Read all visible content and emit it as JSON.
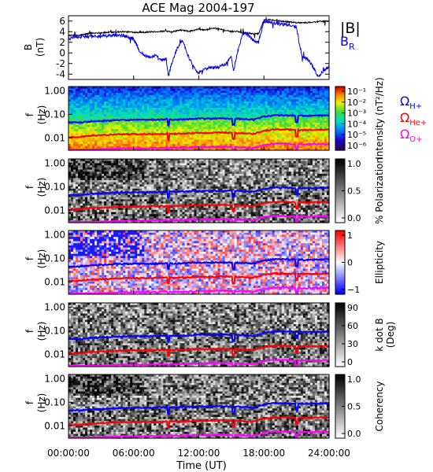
{
  "title": "ACE Mag 2004-197",
  "xlabel": "Time (UT)",
  "x_ticks": [
    "00:00:00",
    "06:00:00",
    "12:00:00",
    "18:00:00",
    "24:00:00"
  ],
  "freq_ticks": [
    "1.00",
    "0.10",
    "0.01"
  ],
  "panels": [
    {
      "id": "intensity",
      "ylabel": [
        "f",
        "(Hz)"
      ],
      "cbar_label": "Intensity (nT²/Hz)",
      "cbar_ticks": [
        "10⁻¹",
        "10⁻²",
        "10⁻³",
        "10⁻⁴",
        "10⁻⁵",
        "10⁻⁶"
      ],
      "colormap": "rainbow"
    },
    {
      "id": "polarization",
      "ylabel": [
        "f",
        "(Hz)"
      ],
      "cbar_label": "% Polarization",
      "cbar_ticks": [
        "1.0",
        "0.5",
        "0.0"
      ],
      "colormap": "gray"
    },
    {
      "id": "ellipticity",
      "ylabel": [
        "f",
        "(Hz)"
      ],
      "cbar_label": "Ellipticity",
      "cbar_ticks": [
        "1",
        "0",
        "−1"
      ],
      "colormap": "bwr"
    },
    {
      "id": "kdotb",
      "ylabel": [
        "f",
        "(Hz)"
      ],
      "cbar_label": [
        "k dot B",
        "(Deg)"
      ],
      "cbar_ticks": [
        "90",
        "60",
        "30",
        "0"
      ],
      "colormap": "gray"
    },
    {
      "id": "coherency",
      "ylabel": [
        "f",
        "(Hz)"
      ],
      "cbar_label": "Coherency",
      "cbar_ticks": [
        "1.0",
        "0.5",
        "0.0"
      ],
      "colormap": "gray"
    }
  ],
  "chart_data": {
    "type": "line",
    "title": "ACE Mag 2004-197",
    "xlabel": "Time (UT)",
    "x_range_hours": [
      0,
      24
    ],
    "panels": [
      {
        "name": "B",
        "ylabel": "B (nT)",
        "ylim": [
          -5,
          7
        ],
        "y_ticks": [
          6,
          4,
          2,
          0,
          -2,
          -4
        ],
        "series": [
          {
            "name": "|B|",
            "color": "#000000",
            "x": [
              0,
              1,
              2,
              3,
              4,
              5,
              6,
              7,
              8,
              9,
              9.5,
              10,
              10.5,
              11,
              11.5,
              12,
              12.5,
              13,
              13.5,
              14,
              14.5,
              15,
              15.5,
              16,
              16.5,
              17,
              17.5,
              18,
              18.5,
              19,
              20,
              21,
              22,
              23,
              24
            ],
            "y": [
              3.3,
              3.3,
              3.7,
              3.8,
              3.9,
              4.0,
              3.9,
              3.9,
              4.0,
              4.1,
              3.9,
              4.2,
              4.3,
              4.1,
              4.2,
              4.5,
              4.3,
              4.5,
              4.6,
              4.5,
              4.2,
              4.0,
              4.1,
              3.8,
              3.8,
              3.6,
              3.6,
              6.2,
              6.3,
              6.1,
              5.9,
              5.7,
              5.7,
              5.9,
              6.0
            ]
          },
          {
            "name": "B_R",
            "color": "#0000ee",
            "x": [
              0,
              0.5,
              1,
              2,
              3,
              4,
              5,
              5.5,
              6,
              6.5,
              7,
              7.5,
              8,
              8.5,
              9,
              9.2,
              9.5,
              10,
              10.5,
              11,
              11.5,
              12,
              12.5,
              13,
              13.5,
              14,
              14.5,
              15,
              15.2,
              15.5,
              16,
              16.5,
              17,
              17.5,
              18,
              18.5,
              19,
              20,
              20.5,
              21,
              21.5,
              22,
              22.5,
              23,
              23.5,
              24
            ],
            "y": [
              2.5,
              3.0,
              3.0,
              3.2,
              3.1,
              3.3,
              3.3,
              3.0,
              2.6,
              0.5,
              -0.5,
              -0.8,
              -0.5,
              -1.4,
              -1.2,
              -4.4,
              -2.0,
              0.8,
              2.5,
              -0.5,
              -2.5,
              -3.8,
              -3.0,
              -2.8,
              -2.7,
              -2.6,
              -2.0,
              -0.8,
              -3.3,
              -0.5,
              3.4,
              3.5,
              2.4,
              2.0,
              6.0,
              5.8,
              5.6,
              5.3,
              5.2,
              4.8,
              -0.6,
              -1.1,
              -2.5,
              -4.5,
              -3.3,
              -2.5
            ]
          }
        ]
      },
      {
        "name": "gyrofrequencies",
        "ylabel": "f (Hz)",
        "yscale": "log",
        "ylim": [
          0.003,
          1.5
        ],
        "series": [
          {
            "name": "Ω_H+",
            "color": "#0000ff",
            "x": [
              0,
              1,
              2,
              3,
              4,
              5,
              6,
              7,
              8,
              9,
              10,
              11,
              12,
              13,
              14,
              15,
              16,
              17,
              18,
              19,
              20,
              21,
              22,
              23,
              24
            ],
            "y": [
              0.045,
              0.044,
              0.05,
              0.052,
              0.055,
              0.057,
              0.058,
              0.058,
              0.059,
              0.061,
              0.06,
              0.063,
              0.066,
              0.065,
              0.068,
              0.066,
              0.064,
              0.059,
              0.08,
              0.092,
              0.091,
              0.087,
              0.086,
              0.088,
              0.09
            ]
          },
          {
            "name": "Ω_He+",
            "color": "#ff0000",
            "x": [
              0,
              1,
              2,
              3,
              4,
              5,
              6,
              7,
              8,
              9,
              10,
              11,
              12,
              13,
              14,
              15,
              16,
              17,
              18,
              19,
              20,
              21,
              22,
              23,
              24
            ],
            "y": [
              0.011,
              0.011,
              0.0125,
              0.013,
              0.0137,
              0.0142,
              0.0145,
              0.0145,
              0.0147,
              0.0152,
              0.015,
              0.0157,
              0.0165,
              0.0162,
              0.017,
              0.0165,
              0.016,
              0.0148,
              0.02,
              0.023,
              0.0228,
              0.0218,
              0.0215,
              0.022,
              0.0225
            ]
          },
          {
            "name": "Ω_O+",
            "color": "#ff00ff",
            "x": [
              0,
              1,
              2,
              3,
              4,
              5,
              6,
              7,
              8,
              9,
              10,
              11,
              12,
              13,
              14,
              15,
              16,
              17,
              18,
              19,
              20,
              21,
              22,
              23,
              24
            ],
            "y": [
              0.0028,
              0.0028,
              0.0031,
              0.0033,
              0.0034,
              0.0036,
              0.0036,
              0.0036,
              0.0037,
              0.0038,
              0.0038,
              0.0039,
              0.0041,
              0.0041,
              0.0043,
              0.0041,
              0.004,
              0.0037,
              0.005,
              0.0058,
              0.0057,
              0.0054,
              0.0054,
              0.0055,
              0.0056
            ]
          }
        ]
      }
    ],
    "grid": false,
    "legend": "right"
  }
}
